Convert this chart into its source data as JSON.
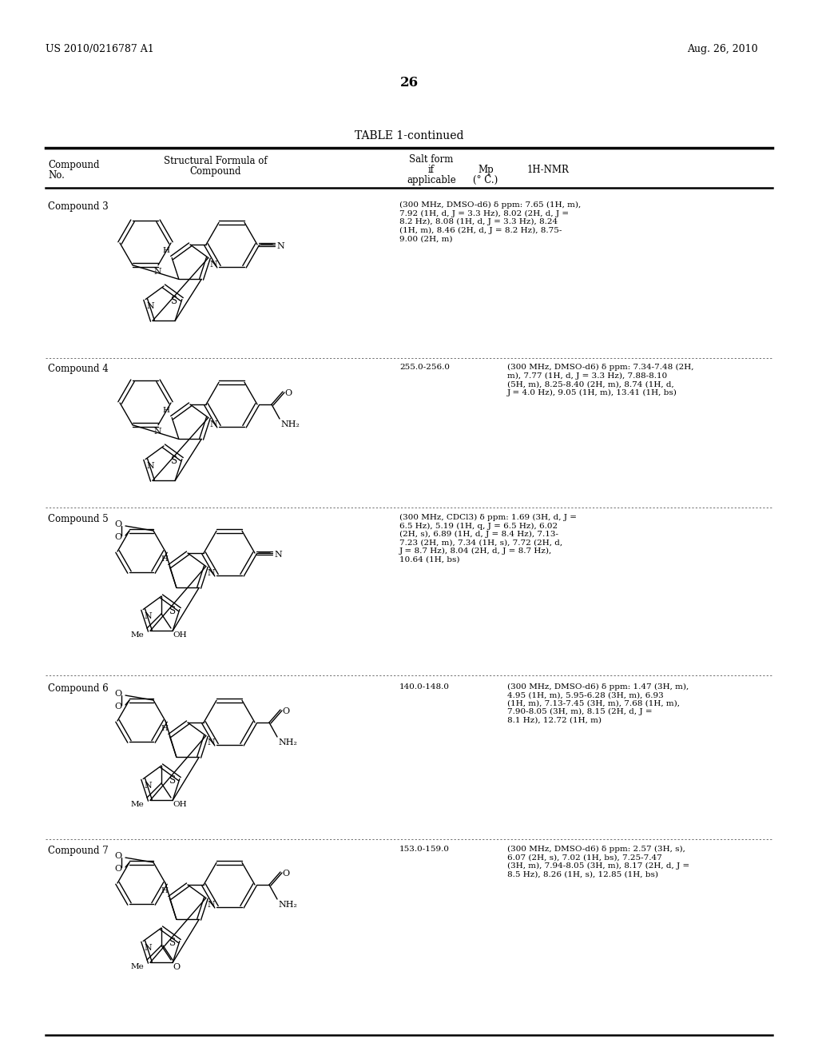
{
  "background_color": "#ffffff",
  "page_number": "26",
  "header_left": "US 2010/0216787 A1",
  "header_right": "Aug. 26, 2010",
  "table_title": "TABLE 1-continued",
  "compounds": [
    {
      "name": "Compound 3",
      "mp": "",
      "salt": "",
      "nmr": "(300 MHz, DMSO-d6) δ ppm: 7.65 (1H, m),\n7.92 (1H, d, J = 3.3 Hz), 8.02 (2H, d, J =\n8.2 Hz), 8.08 (1H, d, J = 3.3 Hz), 8.24\n(1H, m), 8.46 (2H, d, J = 8.2 Hz), 8.75-\n9.00 (2H, m)"
    },
    {
      "name": "Compound 4",
      "mp": "255.0-256.0",
      "salt": "",
      "nmr": "(300 MHz, DMSO-d6) δ ppm: 7.34-7.48 (2H,\nm), 7.77 (1H, d, J = 3.3 Hz), 7.88-8.10\n(5H, m), 8.25-8.40 (2H, m), 8.74 (1H, d,\nJ = 4.0 Hz), 9.05 (1H, m), 13.41 (1H, bs)"
    },
    {
      "name": "Compound 5",
      "mp": "",
      "salt": "",
      "nmr": "(300 MHz, CDCl3) δ ppm: 1.69 (3H, d, J =\n6.5 Hz), 5.19 (1H, q, J = 6.5 Hz), 6.02\n(2H, s), 6.89 (1H, d, J = 8.4 Hz), 7.13-\n7.23 (2H, m), 7.34 (1H, s), 7.72 (2H, d,\nJ = 8.7 Hz), 8.04 (2H, d, J = 8.7 Hz),\n10.64 (1H, bs)"
    },
    {
      "name": "Compound 6",
      "mp": "140.0-148.0",
      "salt": "",
      "nmr": "(300 MHz, DMSO-d6) δ ppm: 1.47 (3H, m),\n4.95 (1H, m), 5.95-6.28 (3H, m), 6.93\n(1H, m), 7.13-7.45 (3H, m), 7.68 (1H, m),\n7.90-8.05 (3H, m), 8.15 (2H, d, J =\n8.1 Hz), 12.72 (1H, m)"
    },
    {
      "name": "Compound 7",
      "mp": "153.0-159.0",
      "salt": "",
      "nmr": "(300 MHz, DMSO-d6) δ ppm: 2.57 (3H, s),\n6.07 (2H, s), 7.02 (1H, bs), 7.25-7.47\n(3H, m), 7.94-8.05 (3H, m), 8.17 (2H, d, J =\n8.5 Hz), 8.26 (1H, s), 12.85 (1H, bs)"
    }
  ]
}
